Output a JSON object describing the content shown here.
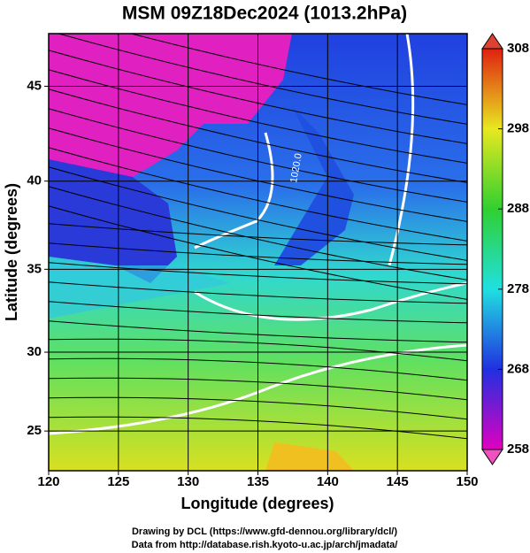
{
  "title": "MSM 09Z18Dec2024 (1013.2hPa)",
  "map": {
    "x_label": "Longitude (degrees)",
    "y_label": "Latitude  (degrees)",
    "xlim": [
      120,
      150
    ],
    "ylim": [
      22.4,
      47.6
    ],
    "xticks": [
      120,
      125,
      130,
      135,
      140,
      145,
      150
    ],
    "yticks": [
      25,
      30,
      35,
      40,
      45
    ],
    "contour_label": "1020.0"
  },
  "colorbar": {
    "lim": [
      258,
      308
    ],
    "ticks": [
      258,
      268,
      278,
      288,
      298,
      308
    ]
  },
  "credits": [
    "Drawing by DCL (https://www.gfd-dennou.org/library/dcl/)",
    "Data from http://database.rish.kyoto-u.ac.jp/arch/jmadata/"
  ]
}
